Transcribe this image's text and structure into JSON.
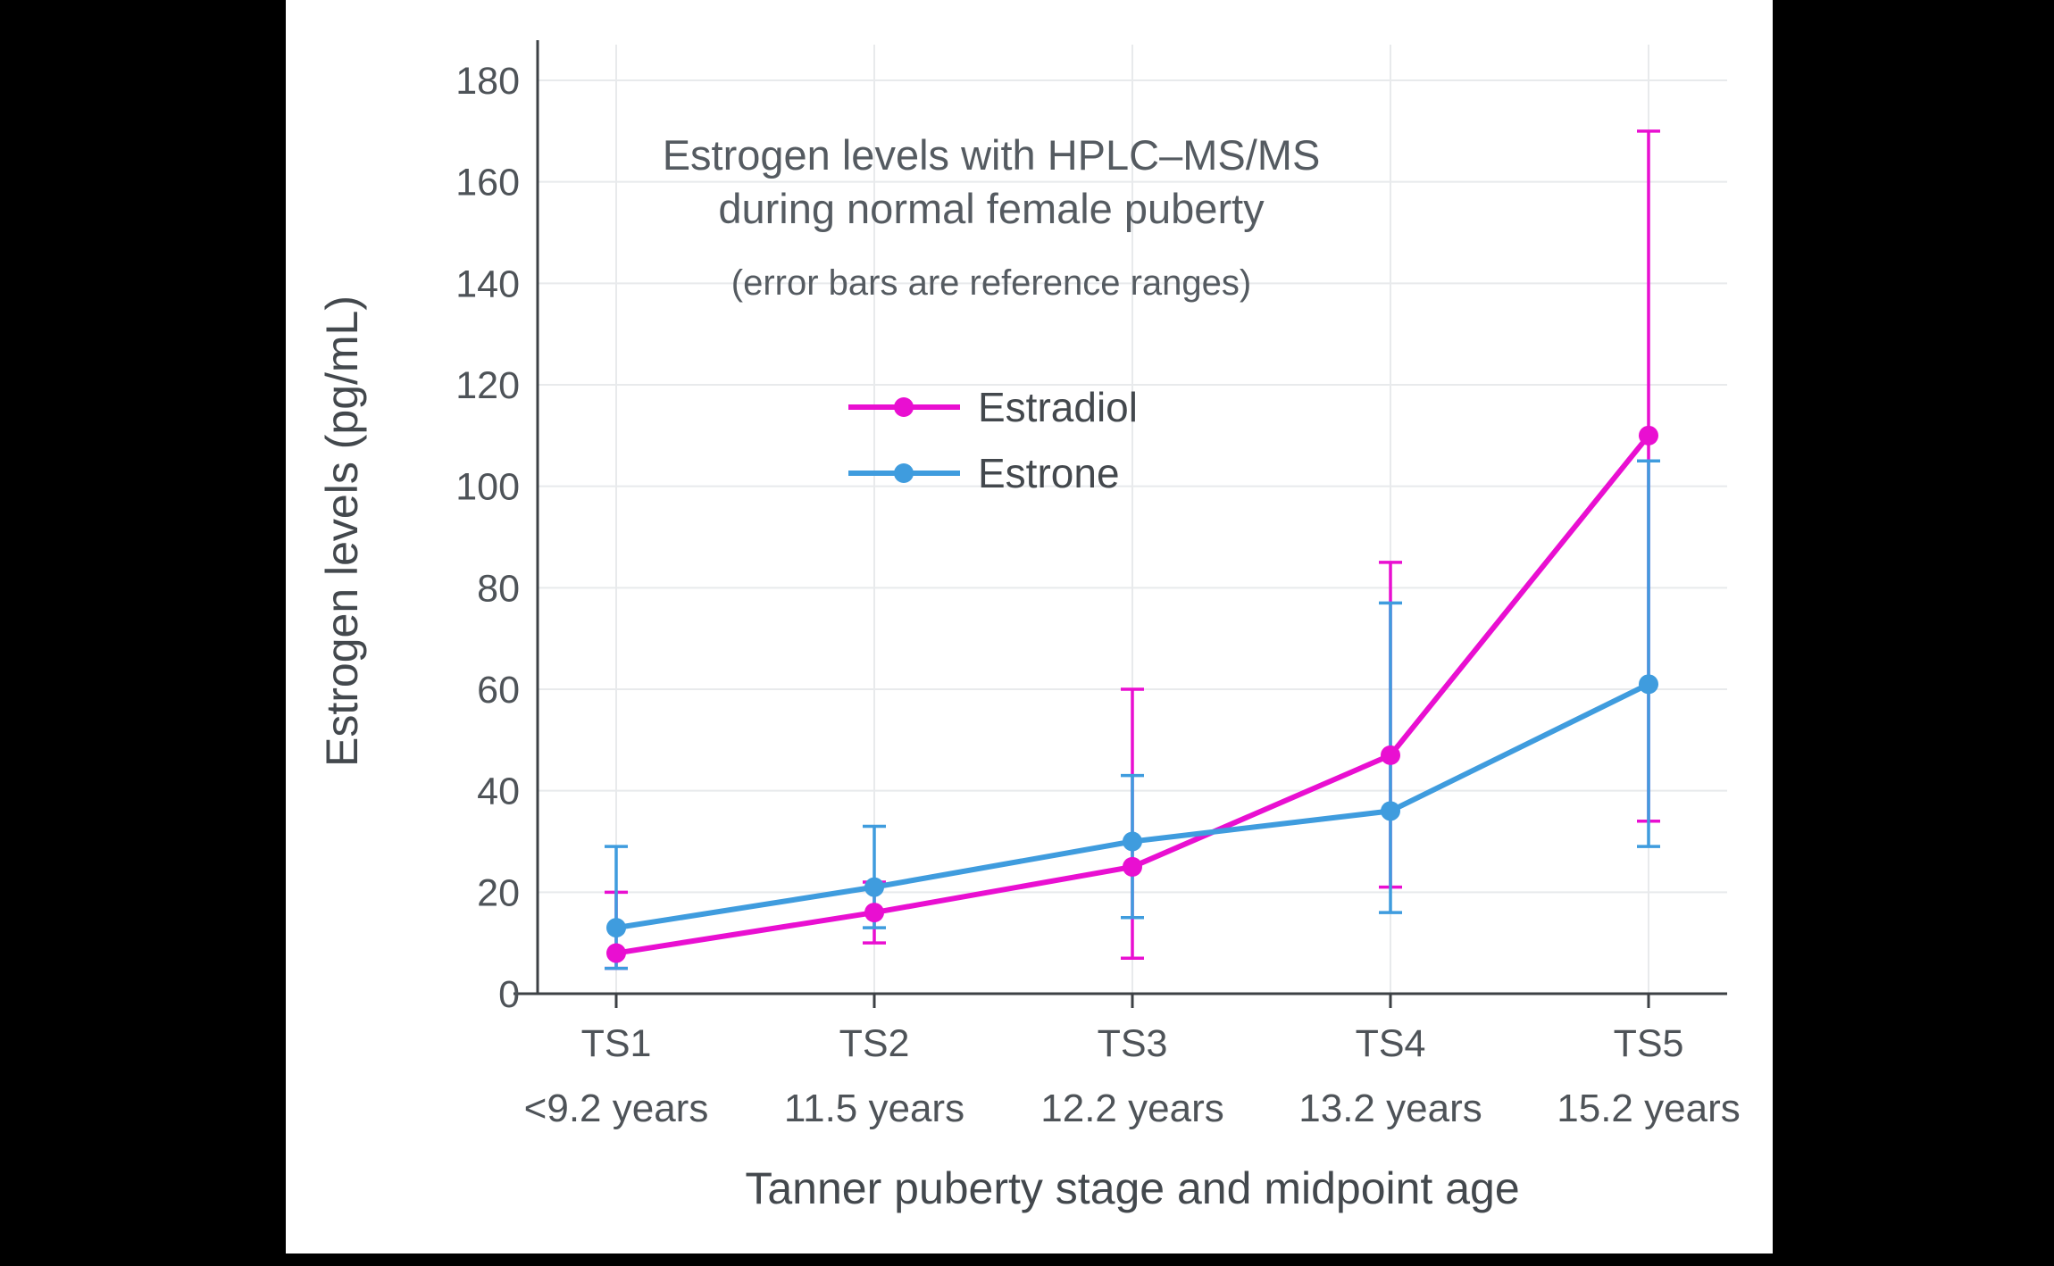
{
  "window": {
    "background": "#000000",
    "panel_background": "#ffffff"
  },
  "chart_data": {
    "type": "line",
    "title_lines": [
      "Estrogen levels with HPLC–MS/MS",
      "during normal female puberty"
    ],
    "subtitle": "(error bars are reference ranges)",
    "xlabel": "Tanner puberty stage and midpoint age",
    "ylabel": "Estrogen levels (pg/mL)",
    "ylim": [
      0,
      180
    ],
    "ytick_step": 20,
    "ytick_labels": [
      "0",
      "20",
      "40",
      "60",
      "80",
      "100",
      "120",
      "140",
      "160",
      "180"
    ],
    "categories": [
      "TS1",
      "TS2",
      "TS3",
      "TS4",
      "TS5"
    ],
    "category_sublabels": [
      "<9.2 years",
      "11.5 years",
      "12.2 years",
      "13.2 years",
      "15.2 years"
    ],
    "grid": true,
    "legend_position": "inside-upper-left",
    "series": [
      {
        "name": "Estradiol",
        "color": "#e90fd1",
        "values": [
          8,
          16,
          25,
          47,
          110
        ],
        "error_low": [
          5,
          10,
          7,
          21,
          34
        ],
        "error_high": [
          20,
          22,
          60,
          85,
          170
        ]
      },
      {
        "name": "Estrone",
        "color": "#3f9cde",
        "values": [
          13,
          21,
          30,
          36,
          61
        ],
        "error_low": [
          5,
          13,
          15,
          16,
          29
        ],
        "error_high": [
          29,
          33,
          43,
          77,
          105
        ]
      }
    ],
    "style": {
      "axis_color": "#3d4145",
      "grid_color": "#e8eaec",
      "tick_label_color": "#4e5358",
      "title_color": "#555b61",
      "axis_title_color": "#43484d",
      "legend_text_color": "#43484d"
    }
  }
}
